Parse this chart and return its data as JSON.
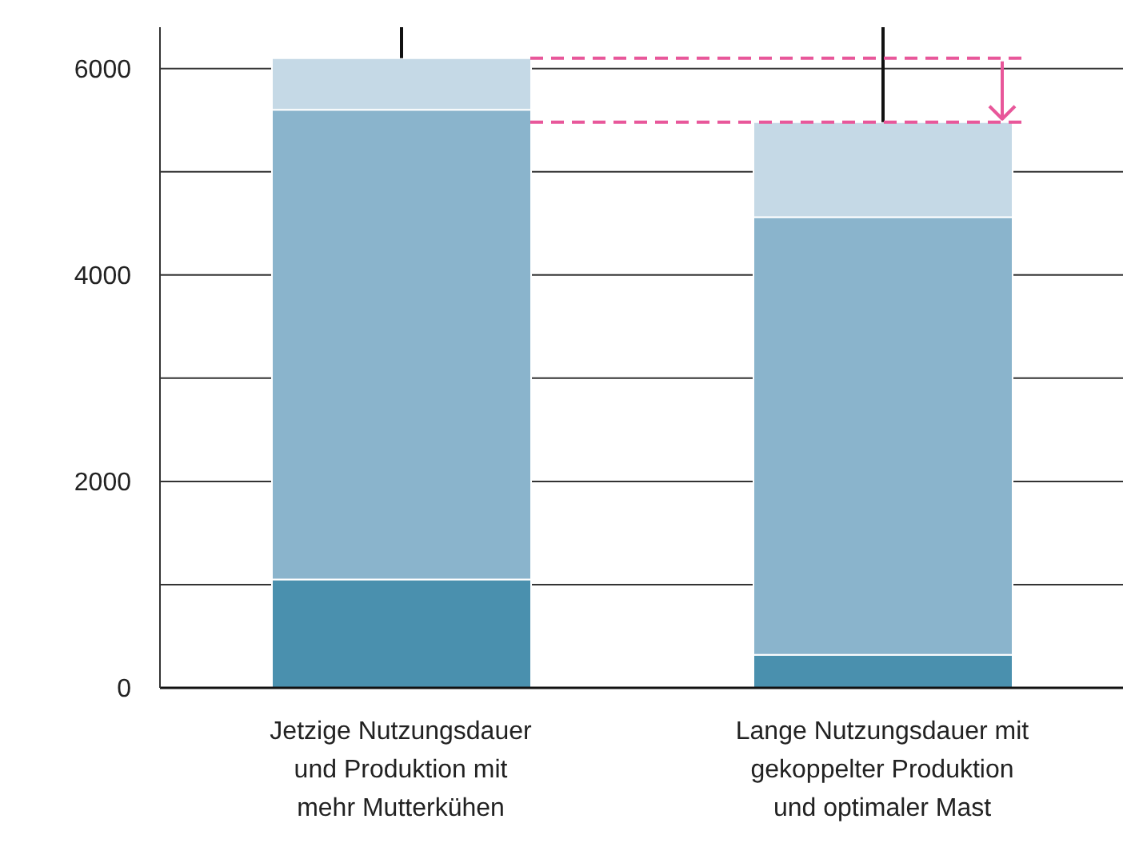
{
  "chart_data": {
    "type": "bar",
    "stacked": true,
    "categories": [
      "Jetzige Nutzungsdauer und Produktion mit mehr Mutterkühen",
      "Lange Nutzungsdauer mit gekoppelter Produktion und optimaler Mast"
    ],
    "series": [
      {
        "color": "#4a90ae",
        "values": [
          1050,
          320
        ]
      },
      {
        "color": "#8ab4cc",
        "values": [
          4550,
          4240
        ]
      },
      {
        "color": "#c5d9e6",
        "values": [
          500,
          920
        ],
        "errors": [
          [
            6100,
            6400
          ],
          [
            5480,
            6400
          ]
        ]
      }
    ],
    "ylim": [
      0,
      6400
    ],
    "yticks": [
      0,
      {
        "value": 1000,
        "label": null
      },
      2000,
      {
        "value": 3000,
        "label": null
      },
      4000,
      {
        "value": 5000,
        "label": null
      },
      6000
    ],
    "grid": "y",
    "ref_lines": [
      {
        "axis": "y",
        "value": 6100,
        "color": "#e8579a",
        "line_style": "dashed"
      },
      {
        "axis": "y",
        "value": 5480,
        "color": "#e8579a",
        "line_style": "dashed"
      }
    ]
  }
}
